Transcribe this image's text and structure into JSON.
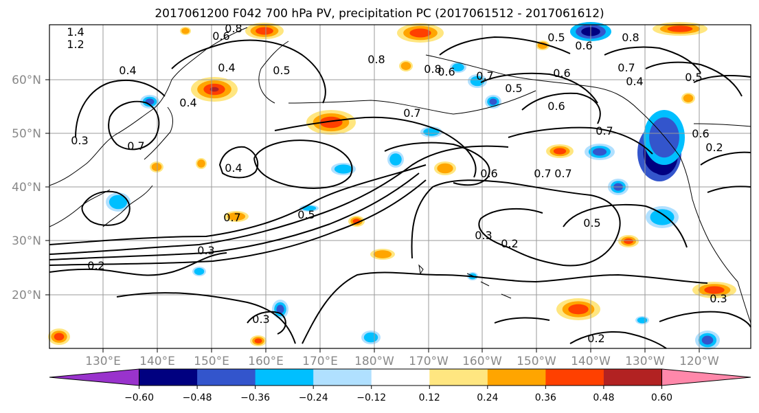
{
  "title": "2017061200 F042 700 hPa PV, precipitation PC (2017061512 - 2017061612)",
  "lat_labels": [
    "60°N",
    "50°N",
    "40°N",
    "30°N",
    "20°N"
  ],
  "lon_labels": [
    "130°E",
    "140°E",
    "150°E",
    "160°E",
    "170°E",
    "180°W",
    "170°W",
    "160°W",
    "150°W",
    "140°W",
    "130°W",
    "120°W"
  ],
  "colorbar": {
    "colors": [
      "#9933cc",
      "#000080",
      "#3355cc",
      "#00bfff",
      "#b0e0ff",
      "#ffffff",
      "#ffe680",
      "#ffa500",
      "#ff4000",
      "#b22222",
      "#ff88aa"
    ],
    "ticks": [
      "−0.60",
      "−0.48",
      "−0.36",
      "−0.24",
      "−0.12",
      "0.12",
      "0.24",
      "0.36",
      "0.48",
      "0.60"
    ]
  },
  "contour_labels": [
    "1.4",
    "1.2",
    "0.8",
    "0.6",
    "0.4",
    "0.5",
    "0.3",
    "0.7",
    "0.8",
    "0.4",
    "0.5",
    "0.7",
    "0.4",
    "0.4",
    "0.7",
    "0.6",
    "0.3",
    "0.2",
    "0.3",
    "0.7",
    "0.6",
    "0.5",
    "0.6",
    "0.7",
    "0.8",
    "0.5",
    "0.6",
    "0.6",
    "0.7",
    "0.7",
    "0.5",
    "0.3",
    "0.2",
    "0.3",
    "0.2",
    "0.2",
    "0.8",
    "0.6",
    "0.7",
    "0.4",
    "0.5"
  ]
}
